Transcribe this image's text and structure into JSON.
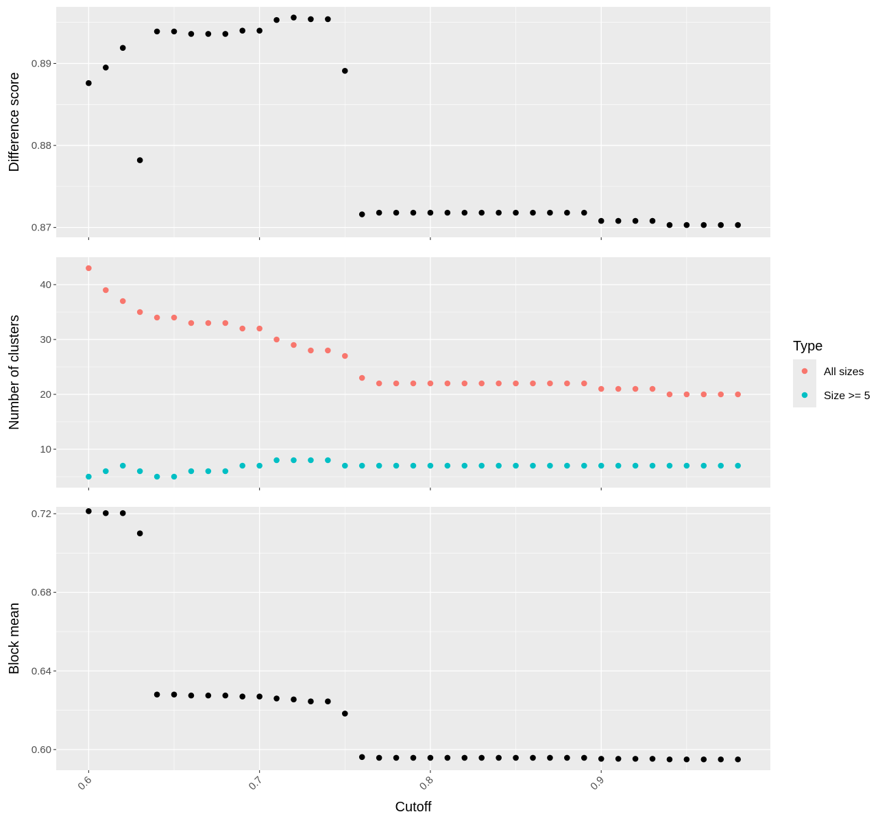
{
  "chart_data": [
    {
      "type": "scatter",
      "ylabel": "Difference score",
      "ylim": [
        0.8688,
        0.8969
      ],
      "yticks": [
        0.87,
        0.88,
        0.89
      ],
      "yticks_minor": [
        0.875,
        0.885,
        0.895
      ],
      "ytick_labels": [
        "0.87",
        "0.88",
        "0.89"
      ],
      "series": [
        {
          "color": "#000000",
          "x": [
            0.6,
            0.61,
            0.62,
            0.63,
            0.64,
            0.65,
            0.66,
            0.67,
            0.68,
            0.69,
            0.7,
            0.71,
            0.72,
            0.73,
            0.74,
            0.75,
            0.76,
            0.77,
            0.78,
            0.79,
            0.8,
            0.81,
            0.82,
            0.83,
            0.84,
            0.85,
            0.86,
            0.87,
            0.88,
            0.89,
            0.9,
            0.91,
            0.92,
            0.93,
            0.94,
            0.95,
            0.96,
            0.97,
            0.98
          ],
          "y": [
            0.8876,
            0.8895,
            0.8919,
            0.8782,
            0.8939,
            0.8939,
            0.8936,
            0.8936,
            0.8936,
            0.894,
            0.894,
            0.8953,
            0.8956,
            0.8954,
            0.8954,
            0.8891,
            0.8716,
            0.8718,
            0.8718,
            0.8718,
            0.8718,
            0.8718,
            0.8718,
            0.8718,
            0.8718,
            0.8718,
            0.8718,
            0.8718,
            0.8718,
            0.8718,
            0.8708,
            0.8708,
            0.8708,
            0.8708,
            0.8703,
            0.8703,
            0.8703,
            0.8703,
            0.8703
          ]
        }
      ]
    },
    {
      "type": "scatter",
      "ylabel": "Number of clusters",
      "ylim": [
        3,
        45
      ],
      "yticks": [
        10,
        20,
        30,
        40
      ],
      "yticks_minor": [
        5,
        15,
        25,
        35
      ],
      "ytick_labels": [
        "10",
        "20",
        "30",
        "40"
      ],
      "series": [
        {
          "name": "All sizes",
          "color": "#F8766D",
          "x": [
            0.6,
            0.61,
            0.62,
            0.63,
            0.64,
            0.65,
            0.66,
            0.67,
            0.68,
            0.69,
            0.7,
            0.71,
            0.72,
            0.73,
            0.74,
            0.75,
            0.76,
            0.77,
            0.78,
            0.79,
            0.8,
            0.81,
            0.82,
            0.83,
            0.84,
            0.85,
            0.86,
            0.87,
            0.88,
            0.89,
            0.9,
            0.91,
            0.92,
            0.93,
            0.94,
            0.95,
            0.96,
            0.97,
            0.98
          ],
          "y": [
            43,
            39,
            37,
            35,
            34,
            34,
            33,
            33,
            33,
            32,
            32,
            30,
            29,
            28,
            28,
            27,
            23,
            22,
            22,
            22,
            22,
            22,
            22,
            22,
            22,
            22,
            22,
            22,
            22,
            22,
            21,
            21,
            21,
            21,
            20,
            20,
            20,
            20,
            20
          ]
        },
        {
          "name": "Size >= 5",
          "color": "#00BFC4",
          "x": [
            0.6,
            0.61,
            0.62,
            0.63,
            0.64,
            0.65,
            0.66,
            0.67,
            0.68,
            0.69,
            0.7,
            0.71,
            0.72,
            0.73,
            0.74,
            0.75,
            0.76,
            0.77,
            0.78,
            0.79,
            0.8,
            0.81,
            0.82,
            0.83,
            0.84,
            0.85,
            0.86,
            0.87,
            0.88,
            0.89,
            0.9,
            0.91,
            0.92,
            0.93,
            0.94,
            0.95,
            0.96,
            0.97,
            0.98
          ],
          "y": [
            5,
            6,
            7,
            6,
            5,
            5,
            6,
            6,
            6,
            7,
            7,
            8,
            8,
            8,
            8,
            7,
            7,
            7,
            7,
            7,
            7,
            7,
            7,
            7,
            7,
            7,
            7,
            7,
            7,
            7,
            7,
            7,
            7,
            7,
            7,
            7,
            7,
            7,
            7
          ]
        }
      ]
    },
    {
      "type": "scatter",
      "ylabel": "Block mean",
      "ylim": [
        0.5895,
        0.7235
      ],
      "yticks": [
        0.6,
        0.64,
        0.68,
        0.72
      ],
      "yticks_minor": [
        0.62,
        0.66,
        0.7
      ],
      "ytick_labels": [
        "0.60",
        "0.64",
        "0.68",
        "0.72"
      ],
      "series": [
        {
          "color": "#000000",
          "x": [
            0.6,
            0.61,
            0.62,
            0.63,
            0.64,
            0.65,
            0.66,
            0.67,
            0.68,
            0.69,
            0.7,
            0.71,
            0.72,
            0.73,
            0.74,
            0.75,
            0.76,
            0.77,
            0.78,
            0.79,
            0.8,
            0.81,
            0.82,
            0.83,
            0.84,
            0.85,
            0.86,
            0.87,
            0.88,
            0.89,
            0.9,
            0.91,
            0.92,
            0.93,
            0.94,
            0.95,
            0.96,
            0.97,
            0.98
          ],
          "y": [
            0.7213,
            0.7203,
            0.7203,
            0.71,
            0.628,
            0.628,
            0.6275,
            0.6275,
            0.6275,
            0.627,
            0.627,
            0.626,
            0.6255,
            0.6245,
            0.6245,
            0.6183,
            0.5962,
            0.5958,
            0.5958,
            0.5958,
            0.5958,
            0.5958,
            0.5958,
            0.5958,
            0.5958,
            0.5958,
            0.5958,
            0.5958,
            0.5958,
            0.5958,
            0.5953,
            0.5953,
            0.5953,
            0.5953,
            0.595,
            0.595,
            0.595,
            0.595,
            0.595
          ]
        }
      ]
    }
  ],
  "xaxis": {
    "label": "Cutoff",
    "xlim": [
      0.581,
      0.999
    ],
    "ticks": [
      0.6,
      0.7,
      0.8,
      0.9
    ],
    "ticks_minor": [
      0.65,
      0.75,
      0.85,
      0.95
    ],
    "tick_labels": [
      "0.6",
      "0.7",
      "0.8",
      "0.9"
    ]
  },
  "legend": {
    "title": "Type",
    "placement": "right",
    "entries": [
      {
        "label": "All sizes",
        "color": "#F8766D"
      },
      {
        "label": "Size >= 5",
        "color": "#00BFC4"
      }
    ]
  }
}
